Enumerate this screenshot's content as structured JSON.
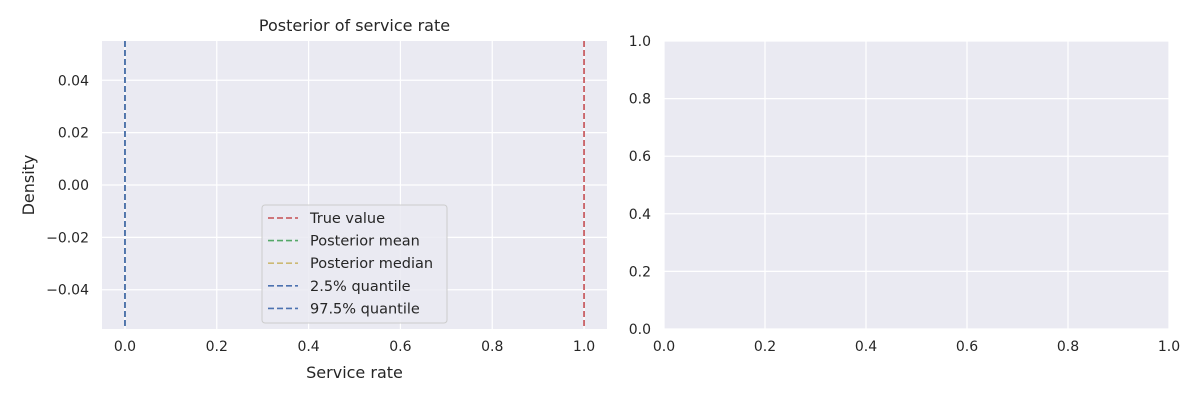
{
  "chart_data": [
    {
      "type": "line",
      "title": "Posterior of service rate",
      "xlabel": "Service rate",
      "ylabel": "Density",
      "xlim": [
        -0.05,
        1.05
      ],
      "ylim": [
        -0.055,
        0.055
      ],
      "xticks": [
        0.0,
        0.2,
        0.4,
        0.6,
        0.8,
        1.0
      ],
      "xtick_labels": [
        "0.0",
        "0.2",
        "0.4",
        "0.6",
        "0.8",
        "1.0"
      ],
      "yticks": [
        -0.04,
        -0.02,
        0.0,
        0.02,
        0.04
      ],
      "ytick_labels": [
        "−0.04",
        "−0.02",
        "0.00",
        "0.02",
        "0.04"
      ],
      "grid": true,
      "legend_position": "lower center",
      "series": [
        {
          "name": "True value",
          "style": "dashed",
          "color": "#c44e52",
          "x": 1.0
        },
        {
          "name": "Posterior mean",
          "style": "dashed",
          "color": "#55a868",
          "x": 0.0
        },
        {
          "name": "Posterior median",
          "style": "dashed",
          "color": "#ccb974",
          "x": 0.0
        },
        {
          "name": "2.5% quantile",
          "style": "dashed",
          "color": "#4c72b0",
          "x": 0.0
        },
        {
          "name": "97.5% quantile",
          "style": "dashed",
          "color": "#4c72b0",
          "x": 0.0
        }
      ]
    },
    {
      "type": "line",
      "title": "",
      "xlabel": "",
      "ylabel": "",
      "xlim": [
        0.0,
        1.0
      ],
      "ylim": [
        0.0,
        1.0
      ],
      "xticks": [
        0.0,
        0.2,
        0.4,
        0.6,
        0.8,
        1.0
      ],
      "xtick_labels": [
        "0.0",
        "0.2",
        "0.4",
        "0.6",
        "0.8",
        "1.0"
      ],
      "yticks": [
        0.0,
        0.2,
        0.4,
        0.6,
        0.8,
        1.0
      ],
      "ytick_labels": [
        "0.0",
        "0.2",
        "0.4",
        "0.6",
        "0.8",
        "1.0"
      ],
      "grid": true,
      "series": []
    }
  ],
  "colors": {
    "axes_background": "#eaeaf2",
    "grid": "#ffffff",
    "text": "#262626"
  }
}
